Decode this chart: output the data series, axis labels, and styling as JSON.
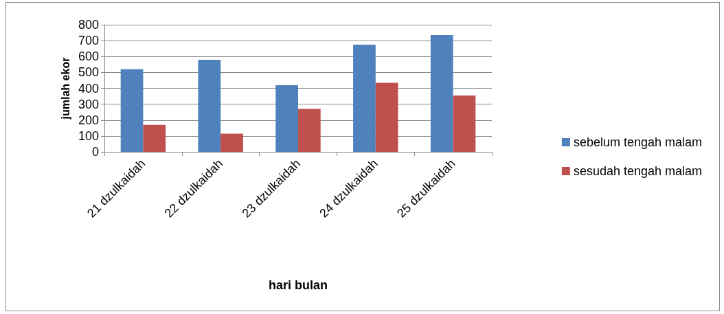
{
  "chart_data": {
    "type": "bar",
    "xlabel": "hari bulan",
    "ylabel": "jumlah ekor",
    "categories": [
      "21 dzulkaidah",
      "22 dzulkaidah",
      "23 dzulkaidah",
      "24 dzulkaidah",
      "25 dzulkaidah"
    ],
    "series": [
      {
        "name": "sebelum tengah malam",
        "color": "#4f81bd",
        "values": [
          520,
          580,
          420,
          675,
          735
        ]
      },
      {
        "name": "sesudah tengah malam",
        "color": "#c0504d",
        "values": [
          170,
          115,
          270,
          435,
          355
        ]
      }
    ],
    "ylim": [
      0,
      800
    ],
    "yticks": [
      0,
      100,
      200,
      300,
      400,
      500,
      600,
      700,
      800
    ],
    "grid": "y",
    "legend": "right"
  }
}
